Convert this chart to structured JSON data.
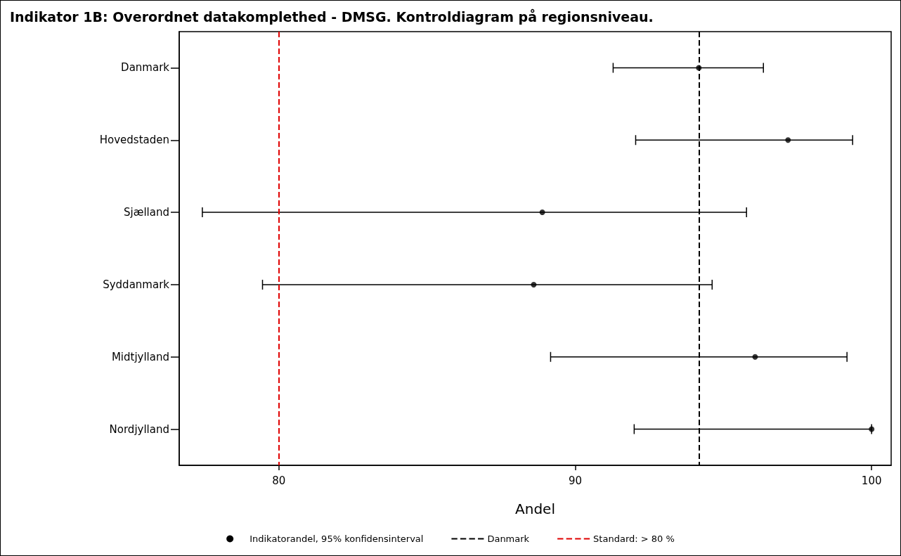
{
  "chart_data": {
    "type": "scatter",
    "title": "Indikator 1B: Overordnet datakomplethed - DMSG. Kontroldiagram på regionsniveau.",
    "xlabel": "Andel",
    "categories": [
      "Danmark",
      "Hovedstaden",
      "Sjælland",
      "Syddanmark",
      "Midtjylland",
      "Nordjylland"
    ],
    "series": [
      {
        "name": "Indikatorandel, 95% konfidensinterval",
        "color": "#000000",
        "values": [
          94.17,
          97.18,
          88.89,
          88.6,
          96.07,
          100
        ],
        "errors": [
          [
            91.28,
            96.35
          ],
          [
            92.04,
            99.36
          ],
          [
            77.42,
            95.78
          ],
          [
            79.45,
            94.62
          ],
          [
            89.17,
            99.17
          ],
          [
            91.99,
            100
          ]
        ]
      }
    ],
    "ref_lines": [
      {
        "axis": "x",
        "value": 94.17,
        "label": "Danmark",
        "color": "#000000",
        "line_style": "dashed"
      },
      {
        "axis": "x",
        "value": 80,
        "label": "Standard: > 80 %",
        "color": "#e00000",
        "line_style": "dashed"
      }
    ],
    "orientation": "horizontal",
    "xlim": [
      76.64,
      100.66
    ],
    "xticks": [
      80,
      90,
      100
    ],
    "marker": "circle",
    "grid": false,
    "legend": "bottom"
  }
}
